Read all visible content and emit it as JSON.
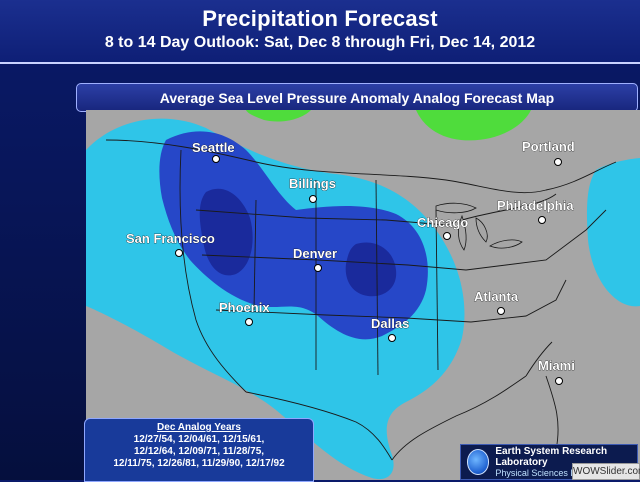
{
  "header": {
    "title": "Precipitation Forecast",
    "subtitle": "8 to 14 Day Outlook: Sat, Dec 8 through Fri, Dec 14, 2012"
  },
  "map": {
    "banner_title": "Average Sea Level Pressure Anomaly Analog Forecast Map",
    "cities": [
      {
        "name": "Seattle"
      },
      {
        "name": "Billings"
      },
      {
        "name": "San Francisco"
      },
      {
        "name": "Denver"
      },
      {
        "name": "Chicago"
      },
      {
        "name": "Portland"
      },
      {
        "name": "Philadelphia"
      },
      {
        "name": "Phoenix"
      },
      {
        "name": "Dallas"
      },
      {
        "name": "Atlanta"
      },
      {
        "name": "Miami"
      }
    ],
    "colors": {
      "background": "#a6a6a6",
      "light_blue": "#2fc5e8",
      "medium_blue": "#2647c8",
      "dark_blue": "#1a2a9c",
      "green": "#4fdc3c"
    }
  },
  "analog": {
    "title": "Dec Analog Years",
    "lines": [
      "12/27/54, 12/04/61, 12/15/61,",
      "12/12/64, 12/09/71, 11/28/75,",
      "12/11/75, 12/26/81, 11/29/90, 12/17/92"
    ]
  },
  "logo": {
    "line1": "Earth System Research Laboratory",
    "line2": "Physical Sciences Division"
  },
  "watermark": "WOWSlider.com"
}
